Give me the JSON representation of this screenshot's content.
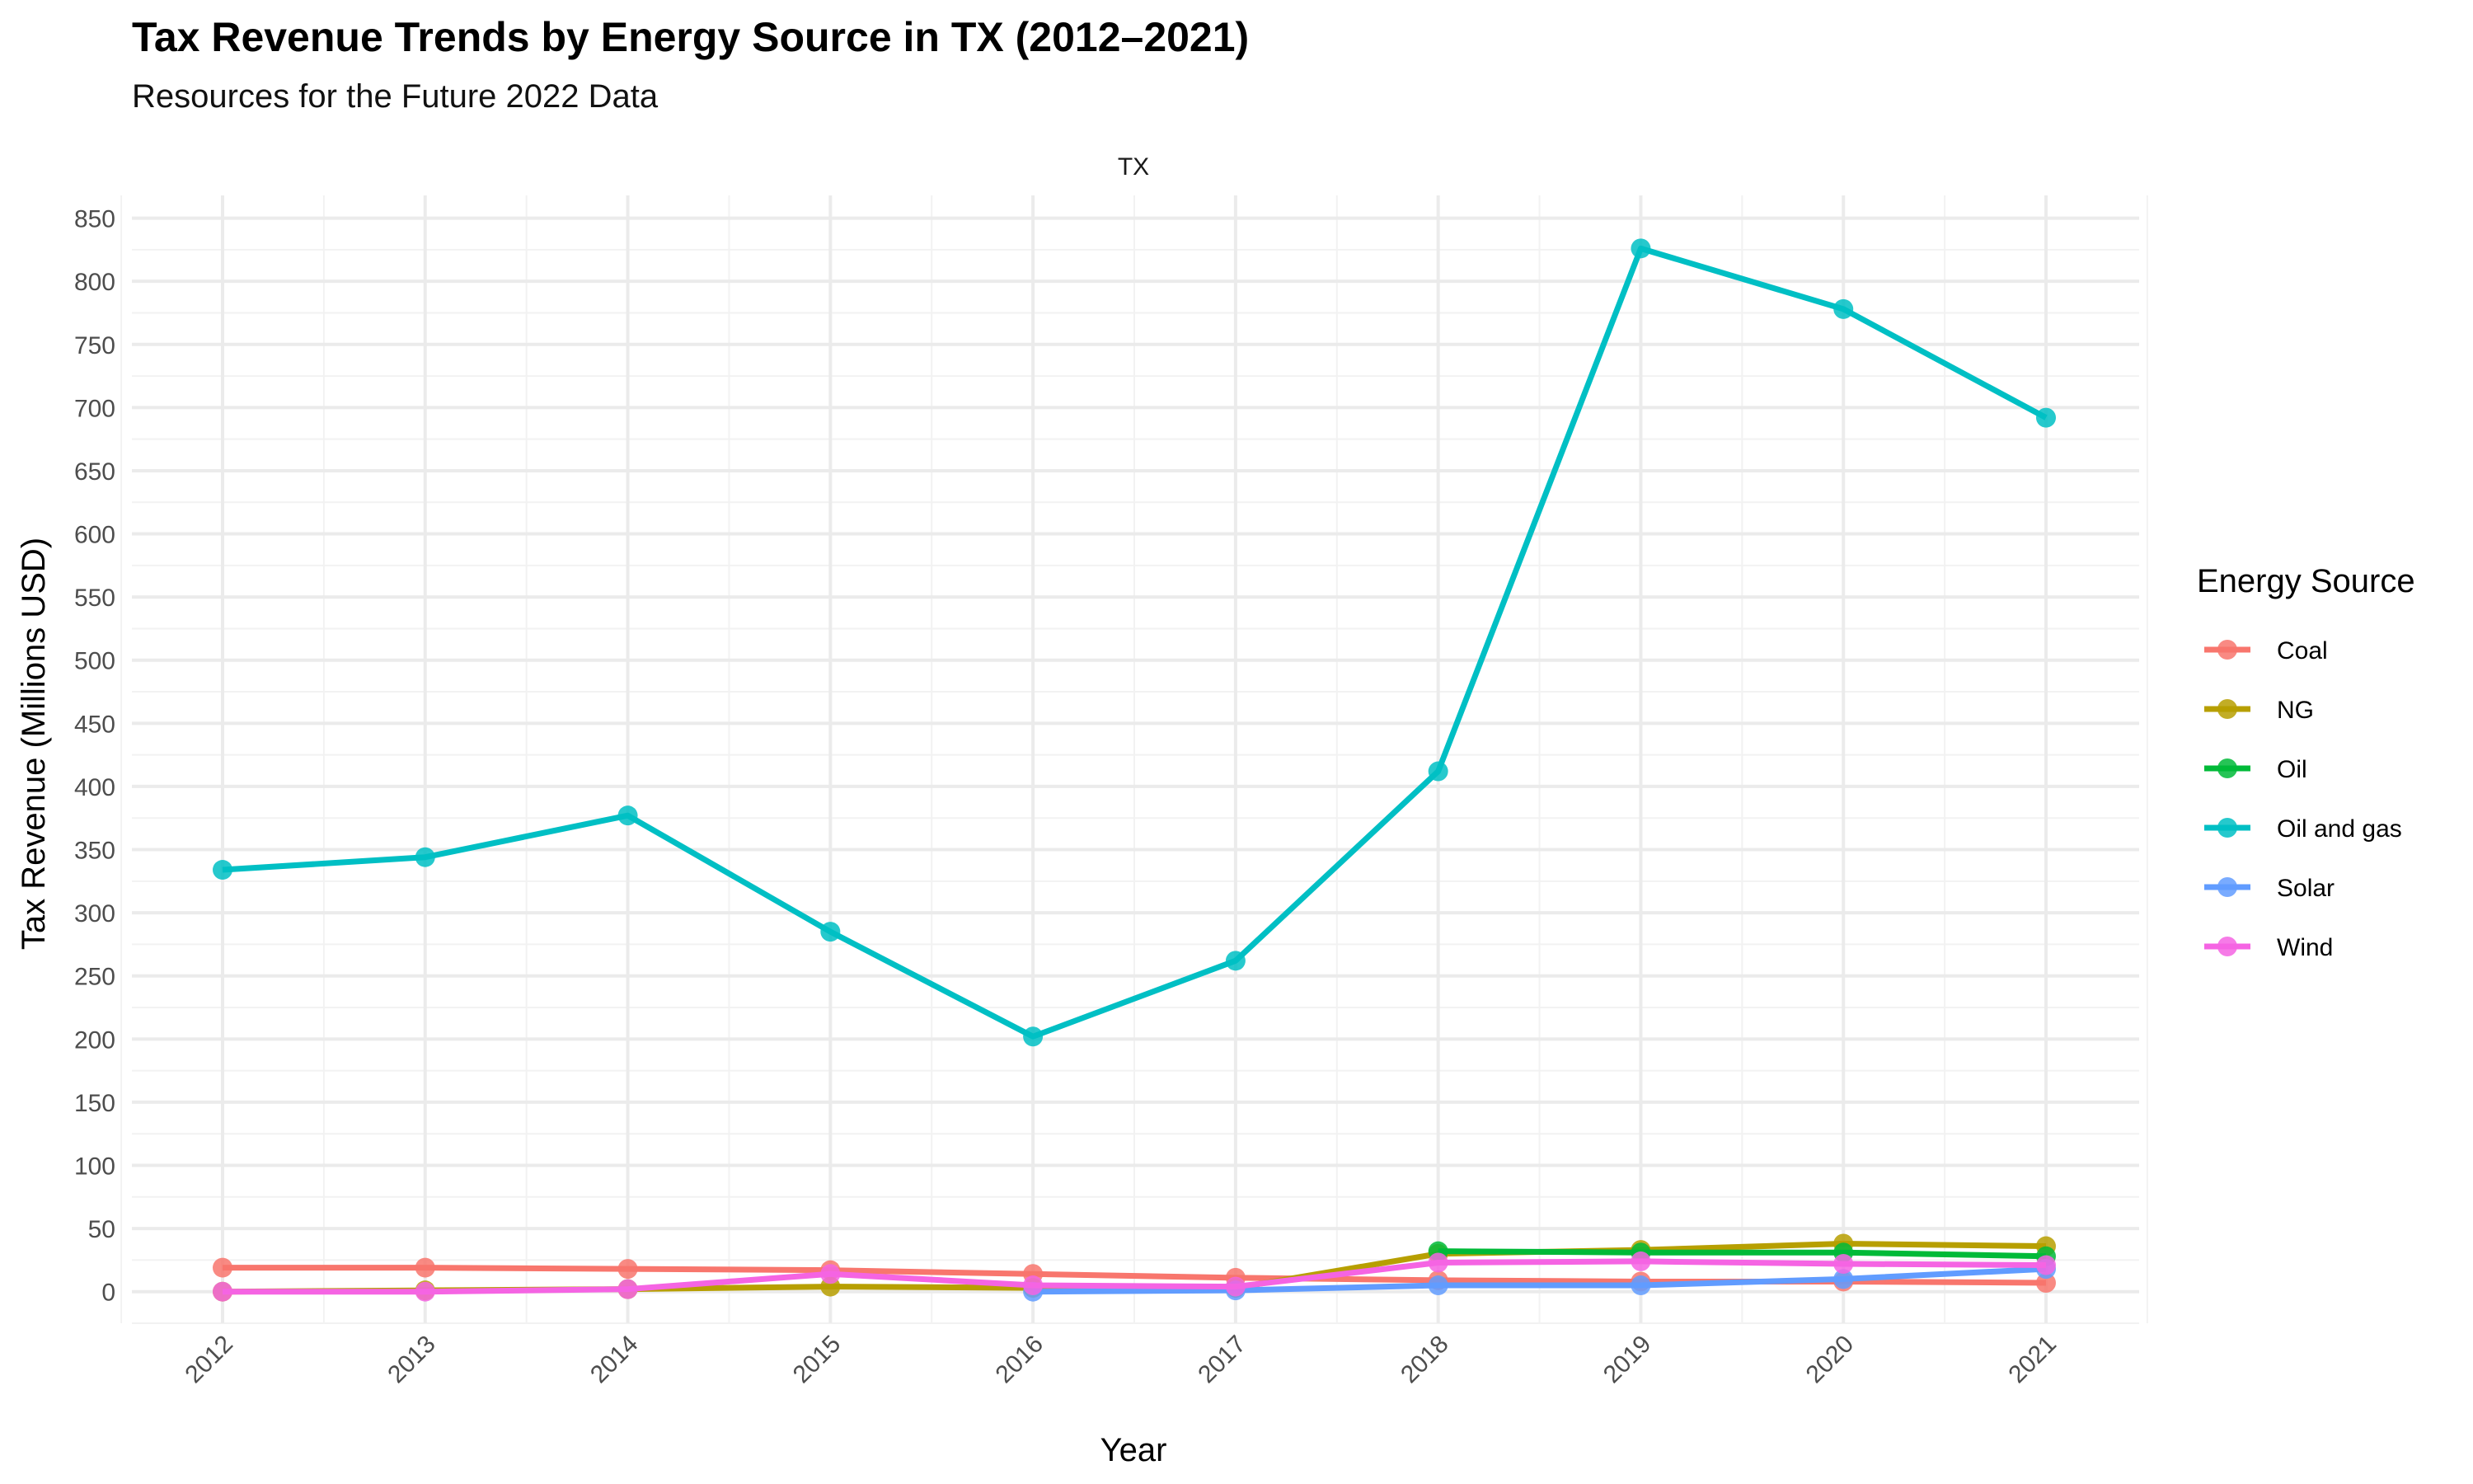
{
  "chart_data": {
    "type": "line",
    "title": "Tax Revenue Trends by Energy Source in TX (2012–2021)",
    "subtitle": "Resources for the Future 2022 Data",
    "facet_label": "TX",
    "xlabel": "Year",
    "ylabel": "Tax Revenue (Millions USD)",
    "legend_title": "Energy Source",
    "legend_position": "right",
    "grid": true,
    "x": [
      "2012",
      "2013",
      "2014",
      "2015",
      "2016",
      "2017",
      "2018",
      "2019",
      "2020",
      "2021"
    ],
    "ylim": [
      -25,
      868
    ],
    "yticks": [
      0,
      50,
      100,
      150,
      200,
      250,
      300,
      350,
      400,
      450,
      500,
      550,
      600,
      650,
      700,
      750,
      800,
      850
    ],
    "series": [
      {
        "name": "Coal",
        "color": "#F8766D",
        "values": [
          19,
          19,
          18,
          17,
          14,
          11,
          9,
          8,
          8,
          7
        ]
      },
      {
        "name": "NG",
        "color": "#B79F00",
        "values": [
          0,
          1,
          2,
          4,
          3,
          3,
          30,
          33,
          38,
          36
        ]
      },
      {
        "name": "Oil",
        "color": "#00BA38",
        "values": [
          null,
          null,
          null,
          null,
          null,
          null,
          32,
          31,
          31,
          28
        ]
      },
      {
        "name": "Oil and gas",
        "color": "#00BFC4",
        "values": [
          334,
          344,
          377,
          285,
          202,
          262,
          412,
          826,
          778,
          692
        ]
      },
      {
        "name": "Solar",
        "color": "#619CFF",
        "values": [
          null,
          null,
          null,
          null,
          0,
          1,
          5,
          5,
          10,
          18
        ]
      },
      {
        "name": "Wind",
        "color": "#F564E3",
        "values": [
          0,
          0,
          2,
          14,
          5,
          4,
          23,
          24,
          22,
          21
        ]
      }
    ]
  }
}
